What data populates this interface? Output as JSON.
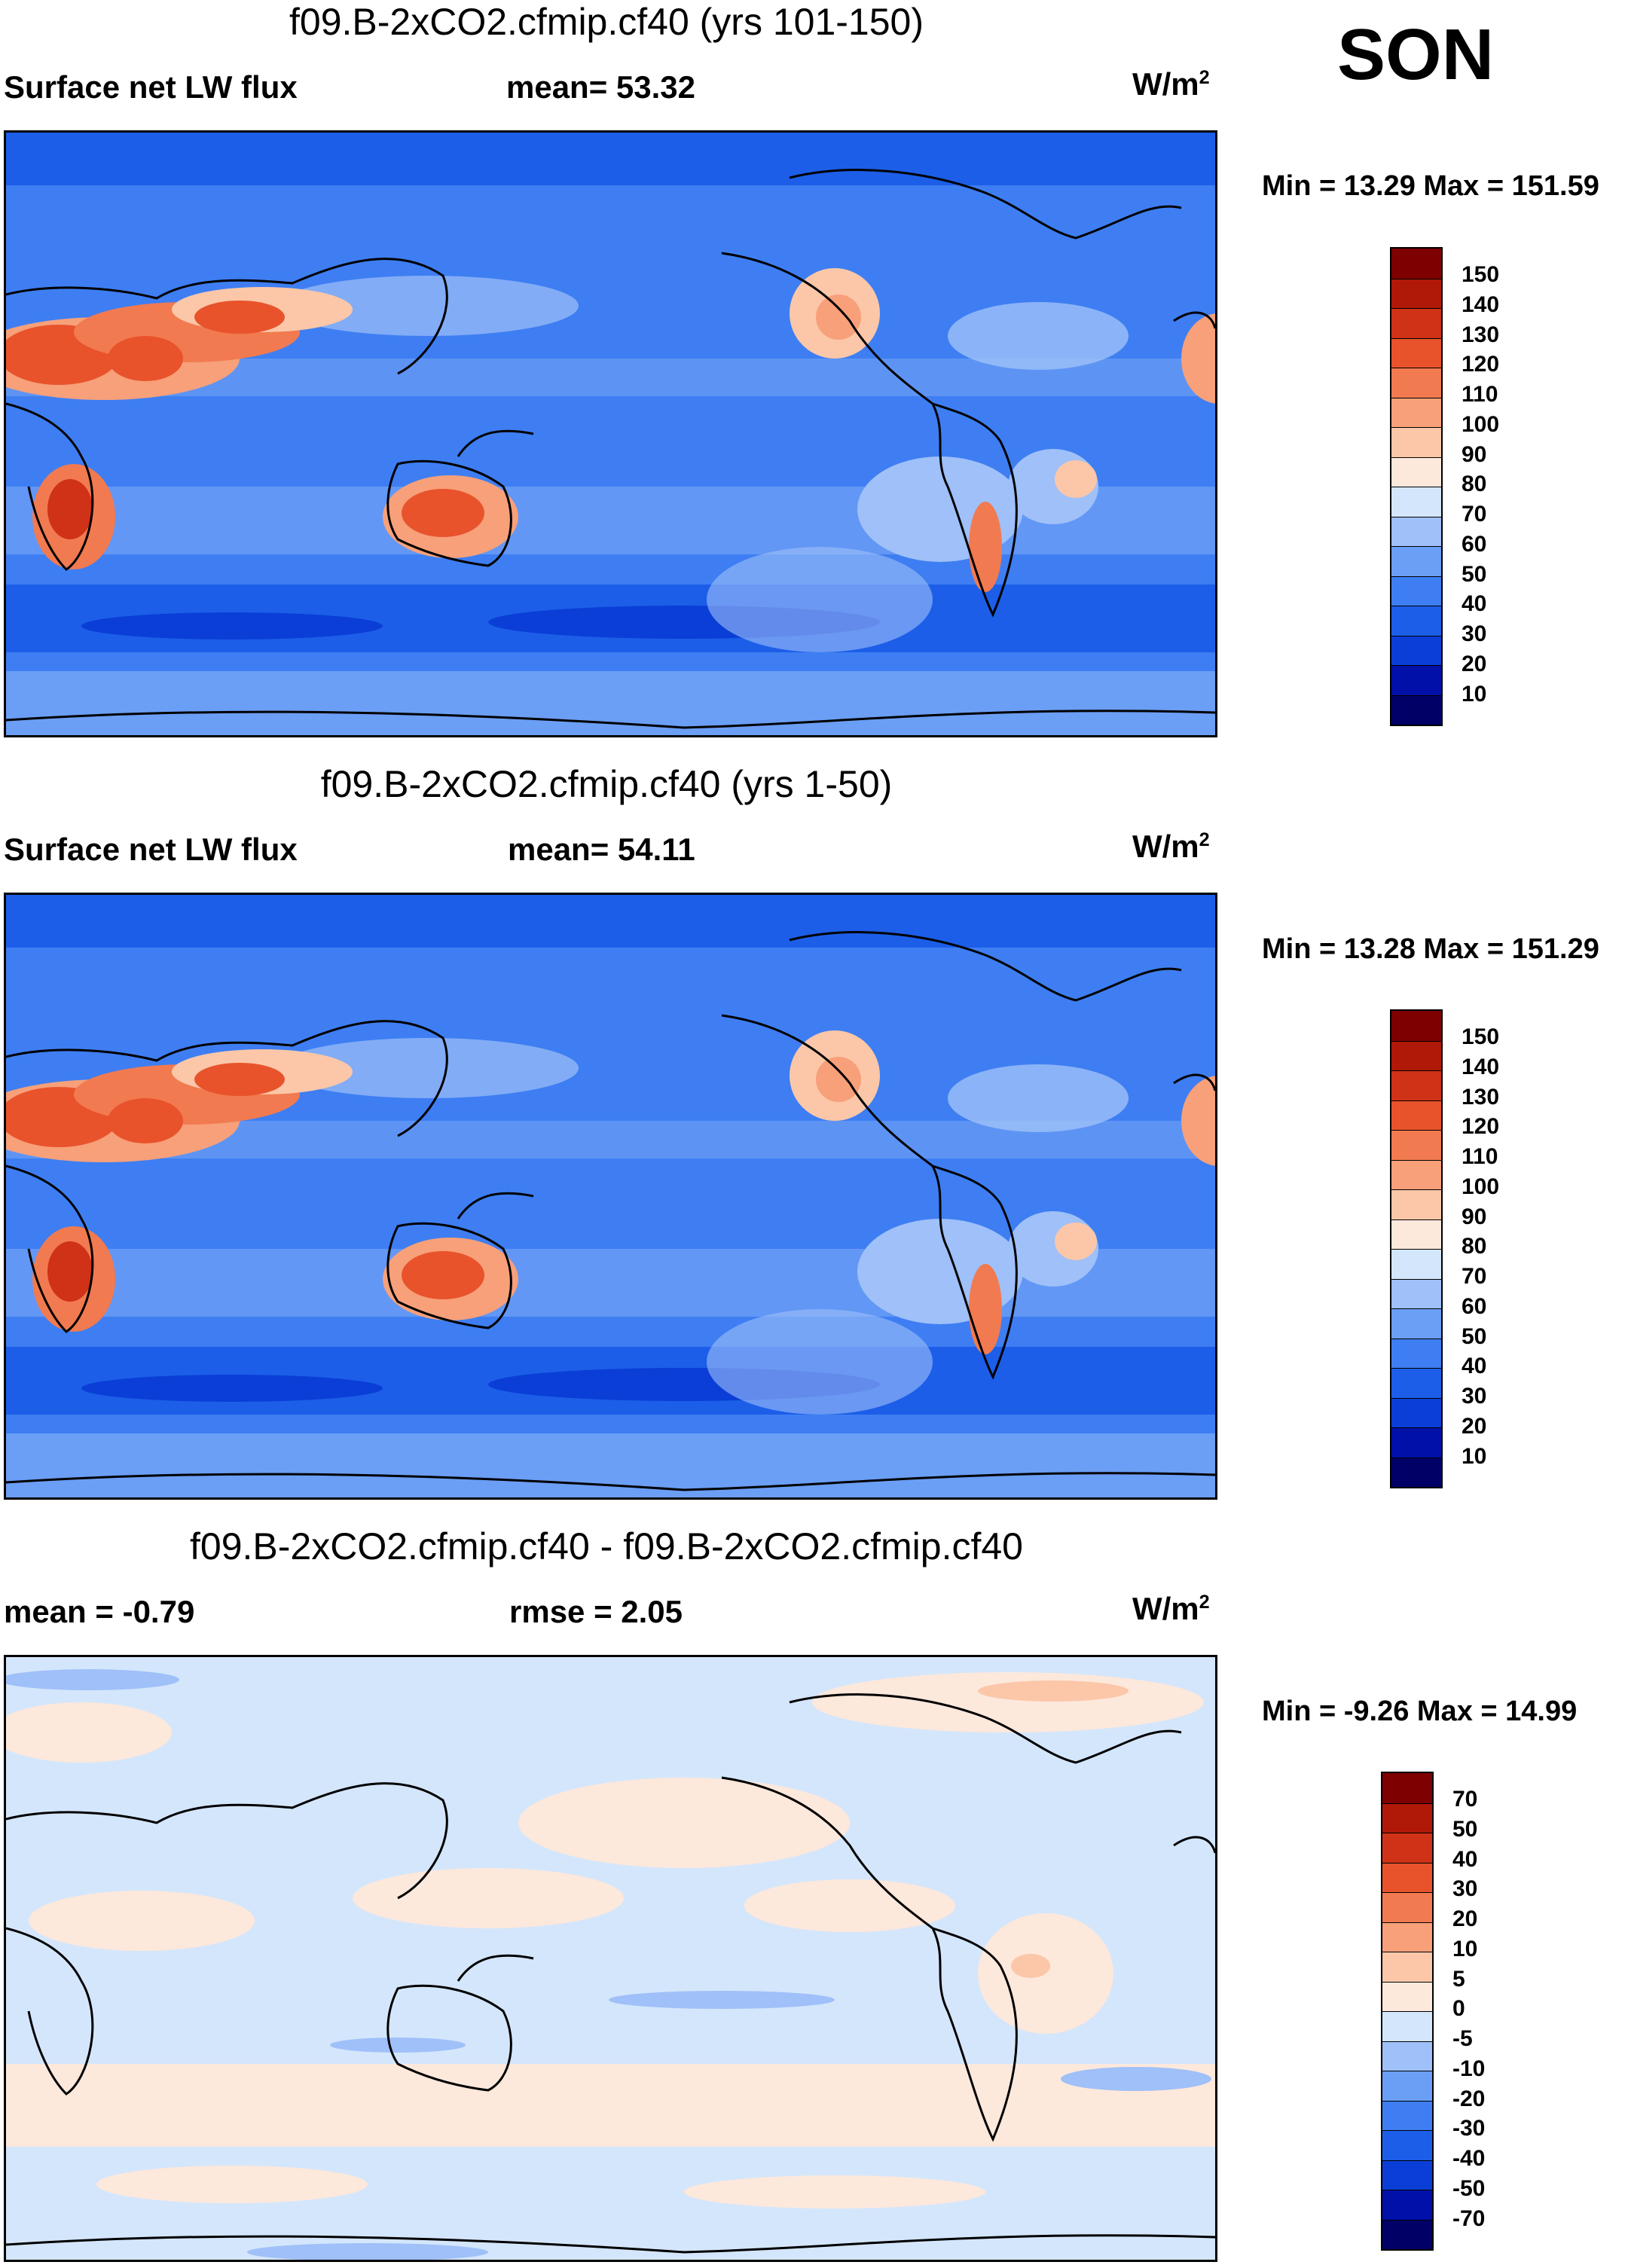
{
  "season": "SON",
  "panels": [
    {
      "title": "f09.B-2xCO2.cfmip.cf40 (yrs 101-150)",
      "left_label": "Surface net LW flux",
      "center_label": "mean=  53.32",
      "units": "W/m",
      "units_sup": "2",
      "min_label": "Min =  13.29",
      "max_label": "Max = 151.59",
      "colorbar_labels": [
        "150",
        "140",
        "130",
        "120",
        "110",
        "100",
        "90",
        "80",
        "70",
        "60",
        "50",
        "40",
        "30",
        "20",
        "10"
      ],
      "colors": [
        "#000066",
        "#0010a8",
        "#0a3ed6",
        "#1c5ee8",
        "#3e7ef2",
        "#6b9ef5",
        "#9fc0f8",
        "#d4e6fb",
        "#fde8dc",
        "#fbc7a8",
        "#f7a07a",
        "#f27a50",
        "#e8532c",
        "#cf3216",
        "#b01808",
        "#7e0000"
      ]
    },
    {
      "title": "f09.B-2xCO2.cfmip.cf40 (yrs 1-50)",
      "left_label": "Surface net LW flux",
      "center_label": "mean=  54.11",
      "units": "W/m",
      "units_sup": "2",
      "min_label": "Min =  13.28",
      "max_label": "Max = 151.29",
      "colorbar_labels": [
        "150",
        "140",
        "130",
        "120",
        "110",
        "100",
        "90",
        "80",
        "70",
        "60",
        "50",
        "40",
        "30",
        "20",
        "10"
      ],
      "colors": [
        "#000066",
        "#0010a8",
        "#0a3ed6",
        "#1c5ee8",
        "#3e7ef2",
        "#6b9ef5",
        "#9fc0f8",
        "#d4e6fb",
        "#fde8dc",
        "#fbc7a8",
        "#f7a07a",
        "#f27a50",
        "#e8532c",
        "#cf3216",
        "#b01808",
        "#7e0000"
      ]
    },
    {
      "title": "f09.B-2xCO2.cfmip.cf40 - f09.B-2xCO2.cfmip.cf40",
      "left_label": "mean =  -0.79",
      "center_label": "rmse =    2.05",
      "units": "W/m",
      "units_sup": "2",
      "min_label": "Min =  -9.26",
      "max_label": "Max =  14.99",
      "colorbar_labels": [
        "70",
        "50",
        "40",
        "30",
        "20",
        "10",
        "5",
        "0",
        "-5",
        "-10",
        "-20",
        "-30",
        "-40",
        "-50",
        "-70"
      ],
      "colors": [
        "#000066",
        "#0010a8",
        "#0a3ed6",
        "#1c5ee8",
        "#3e7ef2",
        "#6b9ef5",
        "#9fc0f8",
        "#d4e6fb",
        "#fde8dc",
        "#fbc7a8",
        "#f7a07a",
        "#f27a50",
        "#e8532c",
        "#cf3216",
        "#b01808",
        "#7e0000"
      ]
    }
  ]
}
